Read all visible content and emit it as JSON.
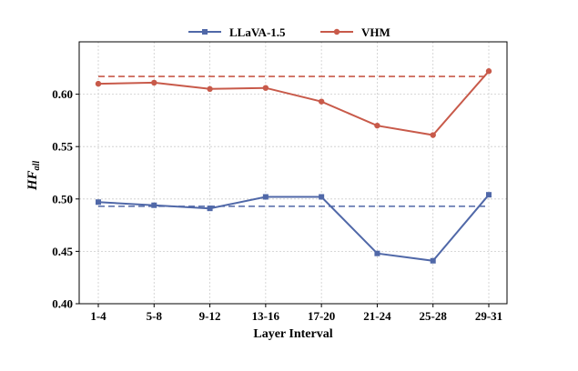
{
  "chart_data": {
    "type": "line",
    "xlabel": "Layer Interval",
    "ylabel_main": "HF",
    "ylabel_sub": "all",
    "categories": [
      "1-4",
      "5-8",
      "9-12",
      "13-16",
      "17-20",
      "21-24",
      "25-28",
      "29-31"
    ],
    "ylim": [
      0.4,
      0.65
    ],
    "yticks": [
      "0.40",
      "0.45",
      "0.50",
      "0.55",
      "0.60"
    ],
    "grid": true,
    "legend_position": "top-center",
    "series": [
      {
        "name": "LLaVA-1.5",
        "color": "#5068a8",
        "marker": "square",
        "values": [
          0.497,
          0.494,
          0.491,
          0.502,
          0.502,
          0.448,
          0.441,
          0.504
        ],
        "reference": 0.493
      },
      {
        "name": "VHM",
        "color": "#c85a4a",
        "marker": "circle",
        "values": [
          0.61,
          0.611,
          0.605,
          0.606,
          0.593,
          0.57,
          0.561,
          0.622
        ],
        "reference": 0.617
      }
    ]
  }
}
